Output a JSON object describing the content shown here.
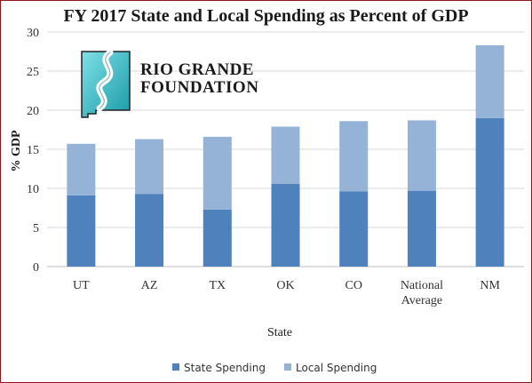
{
  "chart_data": {
    "type": "bar",
    "stacked": true,
    "title": "FY 2017 State and Local Spending as Percent of GDP",
    "xlabel": "State",
    "ylabel": "% GDP",
    "ylim": [
      0,
      30
    ],
    "yticks": [
      0,
      5,
      10,
      15,
      20,
      25,
      30
    ],
    "grid": true,
    "legend_position": "bottom",
    "categories": [
      "UT",
      "AZ",
      "TX",
      "OK",
      "CO",
      "National Average",
      "NM"
    ],
    "category_lines": [
      [
        "UT"
      ],
      [
        "AZ"
      ],
      [
        "TX"
      ],
      [
        "OK"
      ],
      [
        "CO"
      ],
      [
        "National",
        "Average"
      ],
      [
        "NM"
      ]
    ],
    "series": [
      {
        "name": "State Spending",
        "color": "#4f81bd",
        "values": [
          9.1,
          9.3,
          7.3,
          10.6,
          9.6,
          9.7,
          19.0
        ]
      },
      {
        "name": "Local Spending",
        "color": "#95b3d7",
        "values": [
          6.6,
          7.0,
          9.3,
          7.3,
          9.0,
          9.0,
          9.3
        ]
      }
    ]
  },
  "logo": {
    "line1": "RIO GRANDE",
    "line2": "FOUNDATION",
    "colors": {
      "teal_light": "#7fe0e6",
      "teal_dark": "#1a9aa8",
      "outline": "#222222"
    }
  }
}
